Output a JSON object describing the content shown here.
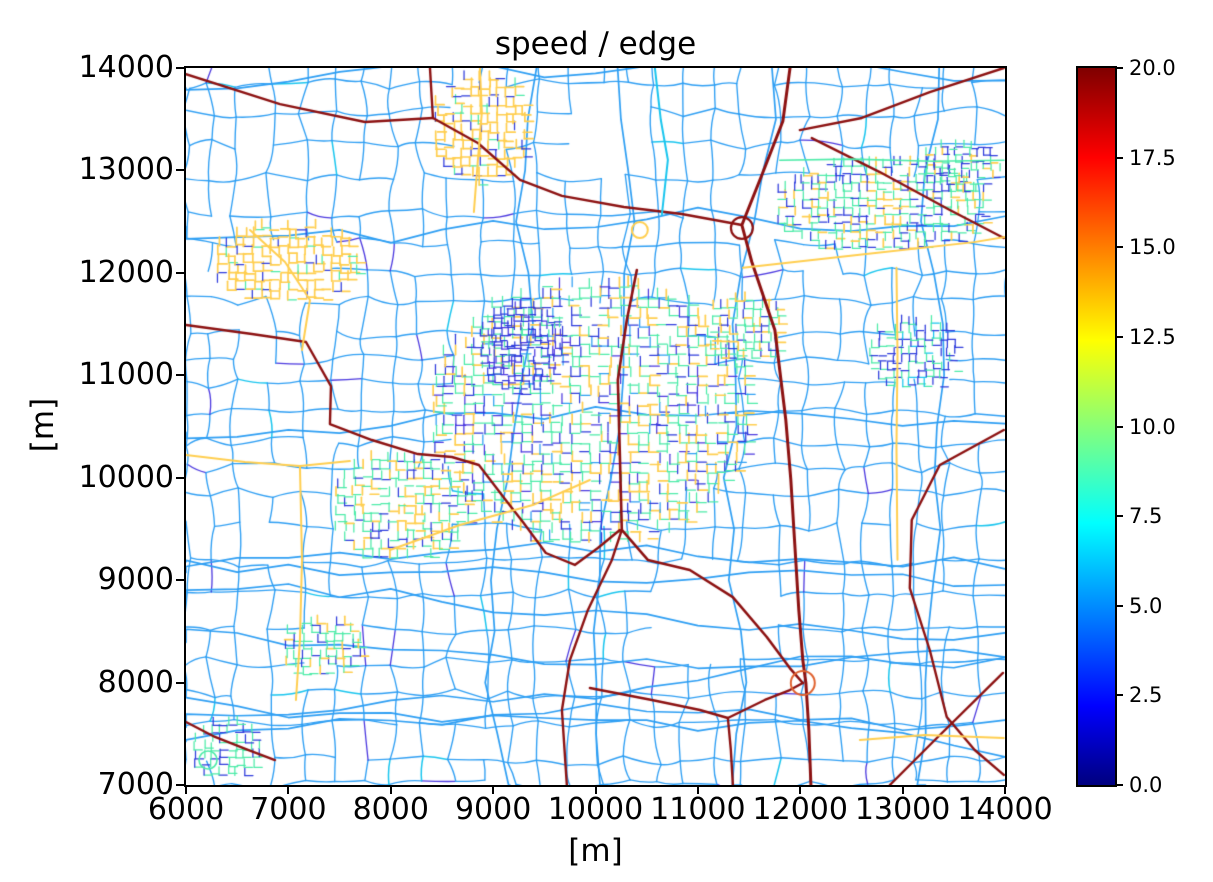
{
  "chart_data": {
    "type": "network-map",
    "title": "speed / edge",
    "xlabel": "[m]",
    "ylabel": "[m]",
    "x_range": [
      6000,
      14000
    ],
    "y_range": [
      7000,
      14000
    ],
    "xticks": [
      6000,
      7000,
      8000,
      9000,
      10000,
      11000,
      12000,
      13000,
      14000
    ],
    "yticks": [
      7000,
      8000,
      9000,
      10000,
      11000,
      12000,
      13000,
      14000
    ],
    "grid": false,
    "colorbar": {
      "min": 0.0,
      "max": 20.0,
      "ticks": [
        "0.0",
        "2.5",
        "5.0",
        "7.5",
        "10.0",
        "12.5",
        "15.0",
        "17.5",
        "20.0"
      ],
      "colormap": "jet",
      "stops": [
        [
          0,
          "#00007F"
        ],
        [
          0.11,
          "#0000FF"
        ],
        [
          0.365,
          "#00FFFF"
        ],
        [
          0.62,
          "#FFFF00"
        ],
        [
          0.875,
          "#FF0000"
        ],
        [
          1,
          "#7F0000"
        ]
      ]
    },
    "network": {
      "description": "Road network colored by edge speed (jet colormap, 0-20 m/s): light-blue rural field roads (~5.5), dark-blue/violet slow streets (~1-3), spring-green residential (~9), yellow collectors (~13), dark-red motorways (~19-20)",
      "mesh": {
        "seed": 7,
        "min": 235,
        "max": 355,
        "jitter": 52,
        "bend": 32,
        "keep": 0.93,
        "color": "#2D9EF3",
        "width": 1.35,
        "p_purple": 0.028,
        "purple": "#4B38DF",
        "p_cyan": 0.022,
        "cyan": "#18C5EE"
      },
      "connectors": {
        "seed": 99,
        "count": 14,
        "step": 500,
        "wiggle": 130,
        "width": 1.7
      },
      "holes": [
        {
          "x": 11117,
          "y": 8660,
          "rx": 684,
          "ry": 537
        },
        {
          "x": 10043,
          "y": 13345,
          "rx": 440,
          "ry": 440
        },
        {
          "x": 11550,
          "y": 12600,
          "rx": 380,
          "ry": 330
        }
      ],
      "bold_color": "#FFCE4F",
      "clusters": [
        {
          "x": 6967,
          "y": 12077,
          "rx": 730,
          "ry": 410,
          "seed": 11,
          "spacing": 85,
          "keep": 0.76,
          "palette": [
            [
              "#FFCE4F",
              0.78
            ],
            [
              "#2E3BDC",
              0.12
            ],
            [
              "#4CEBA8",
              0.1
            ]
          ]
        },
        {
          "x": 8871,
          "y": 13413,
          "rx": 510,
          "ry": 540,
          "seed": 12,
          "spacing": 85,
          "keep": 0.76,
          "palette": [
            [
              "#FFCE4F",
              0.72
            ],
            [
              "#2E3BDC",
              0.18
            ],
            [
              "#4CEBA8",
              0.1
            ]
          ]
        },
        {
          "x": 12777,
          "y": 12633,
          "rx": 1075,
          "ry": 470,
          "seed": 13,
          "spacing": 80,
          "keep": 0.76,
          "palette": [
            [
              "#4CEBA8",
              0.45
            ],
            [
              "#2E3BDC",
              0.33
            ],
            [
              "#FFCE4F",
              0.22
            ]
          ]
        },
        {
          "x": 13089,
          "y": 11198,
          "rx": 470,
          "ry": 370,
          "seed": 14,
          "spacing": 75,
          "keep": 0.76,
          "palette": [
            [
              "#4CEBA8",
              0.4
            ],
            [
              "#2E3BDC",
              0.5
            ],
            [
              "#18C5EE",
              0.1
            ]
          ]
        },
        {
          "x": 9945,
          "y": 10612,
          "rx": 1610,
          "ry": 1320,
          "seed": 15,
          "spacing": 95,
          "keep": 0.76,
          "palette": [
            [
              "#4CEBA8",
              0.4
            ],
            [
              "#FFCE4F",
              0.26
            ],
            [
              "#2E3BDC",
              0.2
            ],
            [
              "#4B38DF",
              0.08
            ],
            [
              "#2D9EF3",
              0.06
            ]
          ]
        },
        {
          "x": 8090,
          "y": 9685,
          "rx": 705,
          "ry": 540,
          "seed": 16,
          "spacing": 85,
          "keep": 0.76,
          "palette": [
            [
              "#4CEBA8",
              0.55
            ],
            [
              "#FFCE4F",
              0.23
            ],
            [
              "#2E3BDC",
              0.22
            ]
          ]
        },
        {
          "x": 6381,
          "y": 7322,
          "rx": 370,
          "ry": 295,
          "seed": 17,
          "spacing": 80,
          "keep": 0.76,
          "palette": [
            [
              "#4CEBA8",
              0.7
            ],
            [
              "#2E3BDC",
              0.3
            ]
          ]
        },
        {
          "x": 7309,
          "y": 8318,
          "rx": 410,
          "ry": 310,
          "seed": 18,
          "spacing": 80,
          "keep": 0.76,
          "palette": [
            [
              "#4CEBA8",
              0.6
            ],
            [
              "#2E3BDC",
              0.2
            ],
            [
              "#FFCE4F",
              0.2
            ]
          ]
        },
        {
          "x": 13559,
          "y": 13004,
          "rx": 390,
          "ry": 275,
          "seed": 19,
          "spacing": 70,
          "keep": 0.76,
          "palette": [
            [
              "#4CEBA8",
              0.45
            ],
            [
              "#2E3BDC",
              0.45
            ],
            [
              "#FFCE4F",
              0.1
            ]
          ]
        },
        {
          "x": 9262,
          "y": 11246,
          "rx": 440,
          "ry": 440,
          "seed": 20,
          "spacing": 65,
          "keep": 0.76,
          "palette": [
            [
              "#2E3BDC",
              0.6
            ],
            [
              "#4B38DF",
              0.25
            ],
            [
              "#4CEBA8",
              0.15
            ]
          ]
        },
        {
          "x": 11459,
          "y": 11442,
          "rx": 400,
          "ry": 350,
          "seed": 21,
          "spacing": 80,
          "keep": 0.76,
          "palette": [
            [
              "#4CEBA8",
              0.5
            ],
            [
              "#FFCE4F",
              0.3
            ],
            [
              "#2E3BDC",
              0.2
            ]
          ]
        }
      ],
      "roads": [
        {
          "c": "#8C1111",
          "w": 3.0,
          "pts": [
            [
              11900,
              14000
            ],
            [
              11830,
              13480
            ],
            [
              11625,
              12955
            ],
            [
              11430,
              12467
            ],
            [
              11527,
              12106
            ],
            [
              11752,
              11442
            ],
            [
              11859,
              10563
            ],
            [
              11908,
              9978
            ],
            [
              11947,
              9343
            ],
            [
              11986,
              8708
            ],
            [
              12025,
              8220
            ],
            [
              12055,
              7996
            ],
            [
              12084,
              7537
            ],
            [
              12104,
              7000
            ]
          ]
        },
        {
          "c": "#8C1111",
          "w": 2.4,
          "pts": [
            [
              6000,
              13940
            ],
            [
              6918,
              13648
            ],
            [
              7748,
              13473
            ],
            [
              8412,
              13512
            ]
          ]
        },
        {
          "c": "#8C1111",
          "w": 2.4,
          "pts": [
            [
              8412,
              13512
            ],
            [
              8383,
              14000
            ]
          ]
        },
        {
          "c": "#8C1111",
          "w": 2.4,
          "pts": [
            [
              8412,
              13512
            ],
            [
              8851,
              13268
            ],
            [
              9262,
              12907
            ],
            [
              9672,
              12751
            ],
            [
              10277,
              12643
            ],
            [
              10843,
              12575
            ],
            [
              11430,
              12467
            ]
          ]
        },
        {
          "c": "#8C1111",
          "w": 2.4,
          "pts": [
            [
              11996,
              13394
            ],
            [
              12601,
              13512
            ],
            [
              13265,
              13765
            ],
            [
              13988,
              14000
            ]
          ]
        },
        {
          "c": "#8C1111",
          "w": 2.4,
          "pts": [
            [
              12113,
              13316
            ],
            [
              12777,
              12984
            ],
            [
              13461,
              12613
            ],
            [
              13988,
              12340
            ]
          ]
        },
        {
          "c": "#8C1111",
          "w": 2.4,
          "pts": [
            [
              6000,
              11491
            ],
            [
              6644,
              11403
            ],
            [
              7172,
              11325
            ],
            [
              7416,
              10895
            ],
            [
              7406,
              10524
            ],
            [
              7816,
              10368
            ],
            [
              8265,
              10231
            ],
            [
              8597,
              10202
            ],
            [
              8861,
              10124
            ],
            [
              9115,
              9792
            ],
            [
              9291,
              9567
            ],
            [
              9515,
              9265
            ],
            [
              9798,
              9148
            ],
            [
              10023,
              9314
            ],
            [
              10238,
              9490
            ]
          ]
        },
        {
          "c": "#8C1111",
          "w": 2.6,
          "pts": [
            [
              10404,
              12028
            ],
            [
              10306,
              11540
            ],
            [
              10218,
              10954
            ],
            [
              10238,
              10222
            ],
            [
              10257,
              9490
            ],
            [
              10511,
              9197
            ],
            [
              10921,
              9099
            ],
            [
              11341,
              8835
            ],
            [
              11673,
              8445
            ],
            [
              11898,
              8142
            ],
            [
              12025,
              7996
            ]
          ]
        },
        {
          "c": "#8C1111",
          "w": 2.4,
          "pts": [
            [
              10257,
              9490
            ],
            [
              10160,
              9197
            ],
            [
              9926,
              8709
            ],
            [
              9750,
              8220
            ],
            [
              9672,
              7732
            ],
            [
              9720,
              7000
            ]
          ]
        },
        {
          "c": "#8C1111",
          "w": 2.4,
          "pts": [
            [
              11293,
              7654
            ],
            [
              11322,
              7342
            ],
            [
              11342,
              7000
            ]
          ]
        },
        {
          "c": "#8C1111",
          "w": 2.4,
          "pts": [
            [
              9945,
              7947
            ],
            [
              10551,
              7830
            ],
            [
              11020,
              7732
            ],
            [
              11293,
              7654
            ],
            [
              11654,
              7830
            ],
            [
              11898,
              7927
            ],
            [
              12025,
              7996
            ]
          ]
        },
        {
          "c": "#8C1111",
          "w": 2.4,
          "pts": [
            [
              6000,
              7615
            ],
            [
              6283,
              7469
            ],
            [
              6605,
              7342
            ],
            [
              6869,
              7244
            ]
          ]
        },
        {
          "c": "#8C1111",
          "w": 2.4,
          "pts": [
            [
              13988,
              10466
            ],
            [
              13363,
              10124
            ],
            [
              13089,
              9587
            ],
            [
              13070,
              8923
            ],
            [
              13265,
              8318
            ],
            [
              13431,
              7664
            ],
            [
              13704,
              7342
            ],
            [
              13988,
              7098
            ]
          ]
        },
        {
          "c": "#8C1111",
          "w": 2.4,
          "pts": [
            [
              12875,
              7000
            ],
            [
              13295,
              7420
            ],
            [
              13980,
              8094
            ]
          ]
        },
        {
          "c": "#FFCE4F",
          "w": 2.0,
          "pts": [
            [
              11440,
              12050
            ],
            [
              12600,
              12180
            ],
            [
              13700,
              12300
            ],
            [
              14000,
              12350
            ]
          ]
        },
        {
          "c": "#FFCE4F",
          "w": 2.0,
          "pts": [
            [
              7992,
              9294
            ],
            [
              8675,
              9538
            ],
            [
              9388,
              9733
            ],
            [
              9945,
              9978
            ]
          ]
        },
        {
          "c": "#FFCE4F",
          "w": 2.0,
          "pts": [
            [
              8871,
              14000
            ],
            [
              8890,
              13570
            ],
            [
              8851,
              13102
            ],
            [
              8812,
              12594
            ]
          ]
        },
        {
          "c": "#FFCE4F",
          "w": 2.0,
          "pts": [
            [
              6000,
              10222
            ],
            [
              6576,
              10153
            ],
            [
              7113,
              10114
            ],
            [
              7601,
              10163
            ]
          ]
        },
        {
          "c": "#FFCE4F",
          "w": 2.0,
          "pts": [
            [
              7113,
              10114
            ],
            [
              7133,
              9197
            ],
            [
              7113,
              8416
            ],
            [
              7074,
              7830
            ]
          ]
        },
        {
          "c": "#FFCE4F",
          "w": 2.0,
          "pts": [
            [
              12940,
              12050
            ],
            [
              12950,
              11200
            ],
            [
              12940,
              10300
            ],
            [
              12950,
              9200
            ]
          ]
        },
        {
          "c": "#FFCE4F",
          "w": 2.0,
          "pts": [
            [
              12582,
              7439
            ],
            [
              13216,
              7488
            ],
            [
              13988,
              7459
            ]
          ]
        },
        {
          "c": "#FFCE4F",
          "w": 2.0,
          "pts": [
            [
              6625,
              12418
            ],
            [
              6967,
              12106
            ],
            [
              7211,
              11735
            ],
            [
              7133,
              11247
            ]
          ]
        },
        {
          "c": "#18C5EE",
          "w": 2.0,
          "pts": [
            [
              10580,
              14000
            ],
            [
              10638,
              13492
            ],
            [
              10707,
              13102
            ],
            [
              10648,
              12565
            ]
          ]
        },
        {
          "c": "#4CEBA8",
          "w": 1.6,
          "pts": [
            [
              11800,
              13100
            ],
            [
              12500,
              13110
            ],
            [
              13300,
              13090
            ],
            [
              13990,
              13100
            ]
          ]
        }
      ],
      "circles": [
        {
          "x": 12025,
          "y": 7996,
          "r": 117,
          "c": "#E0622F",
          "w": 2.0
        },
        {
          "x": 11430,
          "y": 12438,
          "r": 107,
          "c": "#8C1111",
          "w": 2.2
        },
        {
          "x": 10433,
          "y": 12418,
          "r": 78,
          "c": "#FFCE4F",
          "w": 2.0
        },
        {
          "x": 6215,
          "y": 7244,
          "r": 88,
          "c": "#4CEBA8",
          "w": 1.6
        }
      ]
    }
  }
}
